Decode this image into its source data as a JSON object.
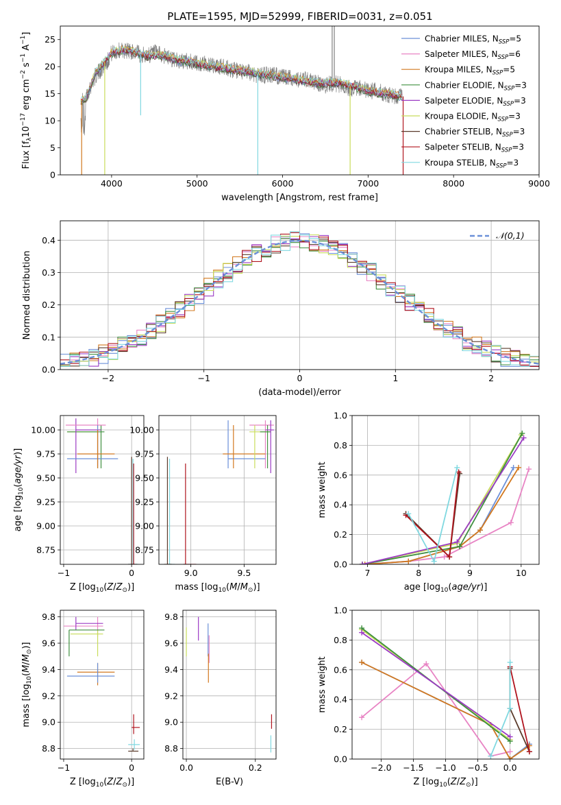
{
  "figure": {
    "title": "PLATE=1595, MJD=52999, FIBERID=0031, z=0.051"
  },
  "palette": {
    "Chabrier MILES": "#6a8fd8",
    "Salpeter MILES": "#e884c4",
    "Kroupa MILES": "#d2781e",
    "Chabrier ELODIE": "#3f8f3f",
    "Salpeter ELODIE": "#9b3ac4",
    "Kroupa ELODIE": "#c8dc5a",
    "Chabrier STELIB": "#5a3a2a",
    "Salpeter STELIB": "#b0141e",
    "Kroupa STELIB": "#7fd8e0",
    "data": "#7f7f7f",
    "grid": "#b0b0b0",
    "gaussian": "#6a8fd8"
  },
  "chart_data": [
    {
      "id": "spectrum",
      "type": "line",
      "xlabel": "wavelength [Angstrom, rest frame]",
      "ylabel": "Flux [f_λ 10^-17 erg cm^-2 s^-1 A^-1]",
      "xlim": [
        3400,
        9000
      ],
      "ylim": [
        0,
        27.5
      ],
      "xticks": [
        4000,
        5000,
        6000,
        7000,
        8000,
        9000
      ],
      "yticks": [
        0,
        5,
        10,
        15,
        20,
        25
      ],
      "grid": false,
      "legend_position": "top-right",
      "legend": [
        {
          "label": "Chabrier MILES, N",
          "sub": "SSP",
          "suffix": "=5"
        },
        {
          "label": "Salpeter MILES, N",
          "sub": "SSP",
          "suffix": "=6"
        },
        {
          "label": "Kroupa MILES, N",
          "sub": "SSP",
          "suffix": "=5"
        },
        {
          "label": "Chabrier ELODIE, N",
          "sub": "SSP",
          "suffix": "=3"
        },
        {
          "label": "Salpeter ELODIE, N",
          "sub": "SSP",
          "suffix": "=3"
        },
        {
          "label": "Kroupa ELODIE, N",
          "sub": "SSP",
          "suffix": "=3"
        },
        {
          "label": "Chabrier STELIB, N",
          "sub": "SSP",
          "suffix": "=3"
        },
        {
          "label": "Salpeter STELIB, N",
          "sub": "SSP",
          "suffix": "=3"
        },
        {
          "label": "Kroupa STELIB, N",
          "sub": "SSP",
          "suffix": "=3"
        }
      ],
      "data_x": [
        3640,
        3700,
        3800,
        3900,
        3950,
        4000,
        4100,
        4200,
        4300,
        4400,
        4500,
        4600,
        4700,
        4800,
        4900,
        5000,
        5100,
        5200,
        5300,
        5400,
        5500,
        5600,
        5700,
        5800,
        5900,
        6000,
        6100,
        6200,
        6300,
        6400,
        6500,
        6600,
        6700,
        6800,
        6900,
        7000,
        7100,
        7200,
        7300,
        7400
      ],
      "data_y": [
        13.5,
        14.5,
        18,
        20,
        21,
        22.5,
        23,
        23,
        22.5,
        22,
        22.5,
        22,
        21.5,
        21,
        21,
        20.5,
        20.5,
        20,
        20,
        19.5,
        19,
        19,
        18.5,
        18.5,
        18.5,
        18,
        18,
        17.5,
        17.5,
        17,
        16.5,
        17,
        16.5,
        16,
        16,
        15.5,
        15.5,
        15,
        14.5,
        14.5
      ],
      "model_x": [
        3640,
        3700,
        3800,
        3900,
        4000,
        4100,
        4200,
        4300,
        4400,
        4500,
        4600,
        4700,
        4800,
        4900,
        5000,
        5200,
        5400,
        5600,
        5800,
        6000,
        6200,
        6400,
        6600,
        6800,
        7000,
        7200,
        7400
      ],
      "model_y": [
        13.5,
        14,
        18.5,
        20.5,
        22.5,
        23,
        23,
        22.5,
        22,
        22,
        22,
        21.5,
        21,
        21,
        20.5,
        20,
        19.5,
        19,
        18.5,
        18,
        17.5,
        17,
        17,
        16.5,
        15.5,
        15,
        14.5
      ],
      "dips": [
        {
          "x": 3650,
          "y": 0
        },
        {
          "x": 3920,
          "y": 0
        },
        {
          "x": 4340,
          "y": 11
        },
        {
          "x": 5710,
          "y": 0
        },
        {
          "x": 6790,
          "y": 0
        },
        {
          "x": 7410,
          "y": 0
        }
      ],
      "spike": {
        "x": 6580,
        "y": 27.5
      }
    },
    {
      "id": "residuals",
      "type": "histogram",
      "xlabel": "(data-model)/error",
      "ylabel": "Normed distribution",
      "xlim": [
        -2.5,
        2.5
      ],
      "ylim": [
        0,
        0.46
      ],
      "xticks": [
        -2,
        -1,
        0,
        1,
        2
      ],
      "yticks": [
        0.0,
        0.1,
        0.2,
        0.3,
        0.4
      ],
      "grid": true,
      "legend_position": "top-right",
      "legend_label": "𝒩(0,1)",
      "bin_edges": [
        -2.5,
        -2.4,
        -2.3,
        -2.2,
        -2.1,
        -2.0,
        -1.9,
        -1.8,
        -1.7,
        -1.6,
        -1.5,
        -1.4,
        -1.3,
        -1.2,
        -1.1,
        -1.0,
        -0.9,
        -0.8,
        -0.7,
        -0.6,
        -0.5,
        -0.4,
        -0.3,
        -0.2,
        -0.1,
        0.0,
        0.1,
        0.2,
        0.3,
        0.4,
        0.5,
        0.6,
        0.7,
        0.8,
        0.9,
        1.0,
        1.1,
        1.2,
        1.3,
        1.4,
        1.5,
        1.6,
        1.7,
        1.8,
        1.9,
        2.0,
        2.1,
        2.2,
        2.3,
        2.4,
        2.5
      ]
    },
    {
      "id": "age-vs-Z",
      "type": "scatter",
      "xlabel": "Z [log10(Z/Z⊙)]",
      "ylabel": "age [log10(age/yr)]",
      "xlim": [
        -1.05,
        0.18
      ],
      "ylim": [
        8.6,
        10.15
      ],
      "xticks": [
        -1,
        0
      ],
      "yticks": [
        8.75,
        9.0,
        9.25,
        9.5,
        9.75,
        10.0
      ],
      "grid": true
    },
    {
      "id": "age-vs-mass",
      "type": "scatter",
      "xlabel": "mass [log10(M/M⊙)]",
      "ylabel": "",
      "xlim": [
        8.7,
        9.8
      ],
      "ylim": [
        8.6,
        10.15
      ],
      "xticks": [
        9.0,
        9.5
      ],
      "yticks": [
        8.75,
        9.0,
        9.25,
        9.5,
        9.75,
        10.0
      ],
      "grid": true
    },
    {
      "id": "weight-vs-age",
      "type": "line",
      "xlabel": "age [log10(age/yr)]",
      "ylabel": "mass weight",
      "xlim": [
        6.7,
        10.35
      ],
      "ylim": [
        0,
        1.0
      ],
      "xticks": [
        7,
        8,
        9,
        10
      ],
      "yticks": [
        0.0,
        0.2,
        0.4,
        0.6,
        0.8,
        1.0
      ],
      "grid": true,
      "series": [
        {
          "model": "Salpeter MILES",
          "x": [
            6.9,
            7.8,
            8.5,
            9.8,
            10.15
          ],
          "y": [
            0.0,
            0.02,
            0.05,
            0.28,
            0.64
          ]
        },
        {
          "model": "Chabrier MILES",
          "x": [
            6.9,
            7.8,
            8.8,
            9.2,
            9.85
          ],
          "y": [
            0.0,
            0.02,
            0.12,
            0.23,
            0.65
          ]
        },
        {
          "model": "Kroupa MILES",
          "x": [
            6.95,
            7.8,
            8.8,
            9.2,
            9.95
          ],
          "y": [
            0.0,
            0.02,
            0.12,
            0.23,
            0.65
          ]
        },
        {
          "model": "Kroupa ELODIE",
          "x": [
            6.9,
            8.75,
            10.0
          ],
          "y": [
            0.0,
            0.14,
            0.87
          ]
        },
        {
          "model": "Chabrier ELODIE",
          "x": [
            6.9,
            8.8,
            10.02
          ],
          "y": [
            0.0,
            0.12,
            0.88
          ]
        },
        {
          "model": "Salpeter ELODIE",
          "x": [
            6.9,
            8.75,
            10.05
          ],
          "y": [
            0.0,
            0.15,
            0.85
          ]
        },
        {
          "model": "Chabrier STELIB",
          "x": [
            7.75,
            8.6,
            8.8
          ],
          "y": [
            0.34,
            0.05,
            0.61
          ]
        },
        {
          "model": "Salpeter STELIB",
          "x": [
            7.75,
            8.6,
            8.78
          ],
          "y": [
            0.33,
            0.05,
            0.62
          ]
        },
        {
          "model": "Kroupa STELIB",
          "x": [
            7.8,
            8.3,
            8.75
          ],
          "y": [
            0.34,
            0.02,
            0.65
          ]
        }
      ]
    },
    {
      "id": "mass-vs-Z",
      "type": "scatter",
      "xlabel": "Z [log10(Z/Z⊙)]",
      "ylabel": "mass [log10(M/M⊙)]",
      "xlim": [
        -1.05,
        0.18
      ],
      "ylim": [
        8.72,
        9.85
      ],
      "xticks": [
        -1,
        0
      ],
      "yticks": [
        8.8,
        9.0,
        9.2,
        9.4,
        9.6,
        9.8
      ],
      "grid": true
    },
    {
      "id": "mass-vs-ebv",
      "type": "scatter",
      "xlabel": "E(B-V)",
      "ylabel": "",
      "xlim": [
        -0.01,
        0.26
      ],
      "ylim": [
        8.72,
        9.85
      ],
      "xticks": [
        0.0,
        0.2
      ],
      "yticks": [
        8.8,
        9.0,
        9.2,
        9.4,
        9.6,
        9.8
      ],
      "grid": true
    },
    {
      "id": "weight-vs-Z",
      "type": "line",
      "xlabel": "Z [log10(Z/Z⊙)]",
      "ylabel": "mass weight",
      "xlim": [
        -2.45,
        0.45
      ],
      "ylim": [
        0,
        1.0
      ],
      "xticks": [
        -2.0,
        -1.5,
        -1.0,
        -0.5,
        0.0
      ],
      "yticks": [
        0.0,
        0.2,
        0.4,
        0.6,
        0.8,
        1.0
      ],
      "grid": true,
      "series": [
        {
          "model": "Salpeter MILES",
          "x": [
            -2.3,
            -1.3,
            -0.3,
            0.0
          ],
          "y": [
            0.28,
            0.64,
            0.02,
            0.05
          ]
        },
        {
          "model": "Chabrier MILES",
          "x": [
            -2.3,
            -0.3,
            0.0,
            0.3
          ],
          "y": [
            0.65,
            0.23,
            0.0,
            0.1
          ]
        },
        {
          "model": "Kroupa MILES",
          "x": [
            -2.3,
            -0.3,
            0.0,
            0.3
          ],
          "y": [
            0.65,
            0.23,
            0.0,
            0.09
          ]
        },
        {
          "model": "Kroupa ELODIE",
          "x": [
            -2.3,
            0.0
          ],
          "y": [
            0.87,
            0.13
          ]
        },
        {
          "model": "Chabrier ELODIE",
          "x": [
            -2.3,
            0.0
          ],
          "y": [
            0.88,
            0.12
          ]
        },
        {
          "model": "Salpeter ELODIE",
          "x": [
            -2.3,
            0.0
          ],
          "y": [
            0.85,
            0.15
          ]
        },
        {
          "model": "Chabrier STELIB",
          "x": [
            0.0,
            0.0,
            0.3
          ],
          "y": [
            0.61,
            0.34,
            0.05
          ]
        },
        {
          "model": "Salpeter STELIB",
          "x": [
            0.0,
            0.3
          ],
          "y": [
            0.62,
            0.05
          ]
        },
        {
          "model": "Kroupa STELIB",
          "x": [
            -0.3,
            0.0,
            0.0
          ],
          "y": [
            0.02,
            0.34,
            0.65
          ]
        }
      ]
    }
  ],
  "errorbars": {
    "age_Z": [
      {
        "model": "Kroupa ELODIE",
        "x": -0.5,
        "y": 9.98,
        "xmin": -0.95,
        "xmax": -0.5,
        "ymin": 9.6,
        "ymax": 10.05
      },
      {
        "model": "Chabrier ELODIE",
        "x": -0.45,
        "y": 9.98,
        "xmin": -0.95,
        "xmax": -0.4,
        "ymin": 9.6,
        "ymax": 10.05
      },
      {
        "model": "Salpeter ELODIE",
        "x": -0.82,
        "y": 10.0,
        "xmin": -0.82,
        "xmax": -0.45,
        "ymin": 9.55,
        "ymax": 10.12
      },
      {
        "model": "Salpeter MILES",
        "x": -0.5,
        "y": 10.05,
        "xmin": -0.97,
        "xmax": -0.38,
        "ymin": 9.62,
        "ymax": 10.12
      },
      {
        "model": "Chabrier MILES",
        "x": -0.5,
        "y": 9.7,
        "xmin": -0.95,
        "xmax": -0.2,
        "ymin": 9.6,
        "ymax": 10.05
      },
      {
        "model": "Kroupa MILES",
        "x": -0.5,
        "y": 9.75,
        "xmin": -0.8,
        "xmax": -0.25,
        "ymin": 9.6,
        "ymax": 10.0
      },
      {
        "model": "Kroupa STELIB",
        "x": 0.02,
        "y": 8.6,
        "xmin": -0.05,
        "xmax": 0.1,
        "ymin": 8.6,
        "ymax": 9.7
      },
      {
        "model": "Chabrier STELIB",
        "x": 0.0,
        "y": 8.6,
        "xmin": -0.05,
        "xmax": 0.08,
        "ymin": 8.6,
        "ymax": 9.72
      },
      {
        "model": "Salpeter STELIB",
        "x": 0.03,
        "y": 8.6,
        "xmin": 0.0,
        "xmax": 0.05,
        "ymin": 8.6,
        "ymax": 9.65
      }
    ],
    "age_mass": [
      {
        "model": "Salpeter MILES",
        "x": 9.7,
        "y": 10.05,
        "xmin": 9.55,
        "xmax": 9.78,
        "ymin": 9.6,
        "ymax": 10.1
      },
      {
        "model": "Chabrier MILES",
        "x": 9.35,
        "y": 9.7,
        "xmin": 9.35,
        "xmax": 9.7,
        "ymin": 9.6,
        "ymax": 10.1
      },
      {
        "model": "Kroupa MILES",
        "x": 9.4,
        "y": 9.75,
        "xmin": 9.3,
        "xmax": 9.7,
        "ymin": 9.6,
        "ymax": 10.05
      },
      {
        "model": "Kroupa ELODIE",
        "x": 9.6,
        "y": 9.98,
        "xmin": 9.55,
        "xmax": 9.75,
        "ymin": 9.6,
        "ymax": 10.05
      },
      {
        "model": "Chabrier ELODIE",
        "x": 9.72,
        "y": 9.98,
        "xmin": 9.65,
        "xmax": 9.75,
        "ymin": 9.6,
        "ymax": 10.05
      },
      {
        "model": "Salpeter ELODIE",
        "x": 9.75,
        "y": 10.0,
        "xmin": 9.7,
        "xmax": 9.78,
        "ymin": 9.55,
        "ymax": 10.1
      },
      {
        "model": "Kroupa STELIB",
        "x": 8.8,
        "y": 8.6,
        "xmin": 8.78,
        "xmax": 8.85,
        "ymin": 8.6,
        "ymax": 9.7
      },
      {
        "model": "Chabrier STELIB",
        "x": 8.78,
        "y": 8.6,
        "xmin": 8.75,
        "xmax": 8.82,
        "ymin": 8.6,
        "ymax": 9.72
      },
      {
        "model": "Salpeter STELIB",
        "x": 8.95,
        "y": 8.6,
        "xmin": 8.93,
        "xmax": 9.05,
        "ymin": 8.6,
        "ymax": 9.65
      }
    ],
    "mass_Z": [
      {
        "model": "Salpeter MILES",
        "x": -0.5,
        "y": 9.73,
        "xmin": -1.0,
        "xmax": -0.42,
        "ymin": 9.65,
        "ymax": 9.8
      },
      {
        "model": "Salpeter ELODIE",
        "x": -0.82,
        "y": 9.75,
        "xmin": -0.82,
        "xmax": -0.42,
        "ymin": 9.7,
        "ymax": 9.8
      },
      {
        "model": "Kroupa ELODIE",
        "x": -0.5,
        "y": 9.67,
        "xmin": -0.9,
        "xmax": -0.42,
        "ymin": 9.5,
        "ymax": 9.7
      },
      {
        "model": "Chabrier ELODIE",
        "x": -0.92,
        "y": 9.7,
        "xmin": -0.92,
        "xmax": -0.4,
        "ymin": 9.5,
        "ymax": 9.7
      },
      {
        "model": "Kroupa MILES",
        "x": -0.5,
        "y": 9.38,
        "xmin": -0.8,
        "xmax": -0.25,
        "ymin": 9.28,
        "ymax": 9.45
      },
      {
        "model": "Chabrier MILES",
        "x": -0.5,
        "y": 9.35,
        "xmin": -0.95,
        "xmax": -0.25,
        "ymin": 9.3,
        "ymax": 9.45
      },
      {
        "model": "Salpeter STELIB",
        "x": 0.03,
        "y": 8.96,
        "xmin": 0.0,
        "xmax": 0.12,
        "ymin": 8.91,
        "ymax": 9.06
      },
      {
        "model": "Kroupa STELIB",
        "x": 0.04,
        "y": 8.83,
        "xmin": -0.05,
        "xmax": 0.12,
        "ymin": 8.79,
        "ymax": 8.87
      },
      {
        "model": "Chabrier STELIB",
        "x": 0.02,
        "y": 8.78,
        "xmin": -0.05,
        "xmax": 0.1,
        "ymin": 8.78,
        "ymax": 8.8
      }
    ],
    "mass_ebv": [
      {
        "model": "Kroupa ELODIE",
        "x": 0.0,
        "y": 9.6,
        "xmin": 0.0,
        "xmax": 0.0,
        "ymin": 9.5,
        "ymax": 9.72
      },
      {
        "model": "Salpeter ELODIE",
        "x": 0.035,
        "y": 9.7,
        "xmin": 0.035,
        "xmax": 0.035,
        "ymin": 9.62,
        "ymax": 9.8
      },
      {
        "model": "Chabrier MILES",
        "x": 0.063,
        "y": 9.6,
        "xmin": 0.063,
        "xmax": 0.063,
        "ymin": 9.5,
        "ymax": 9.75
      },
      {
        "model": "Salpeter MILES",
        "x": 0.066,
        "y": 9.55,
        "xmin": 0.066,
        "xmax": 0.066,
        "ymin": 9.45,
        "ymax": 9.66
      },
      {
        "model": "Kroupa MILES",
        "x": 0.064,
        "y": 9.4,
        "xmin": 0.064,
        "xmax": 0.064,
        "ymin": 9.3,
        "ymax": 9.52
      },
      {
        "model": "Salpeter STELIB",
        "x": 0.247,
        "y": 9.0,
        "xmin": 0.247,
        "xmax": 0.247,
        "ymin": 8.95,
        "ymax": 9.06
      },
      {
        "model": "Kroupa STELIB",
        "x": 0.245,
        "y": 8.85,
        "xmin": 0.245,
        "xmax": 0.245,
        "ymin": 8.77,
        "ymax": 8.9
      }
    ]
  }
}
